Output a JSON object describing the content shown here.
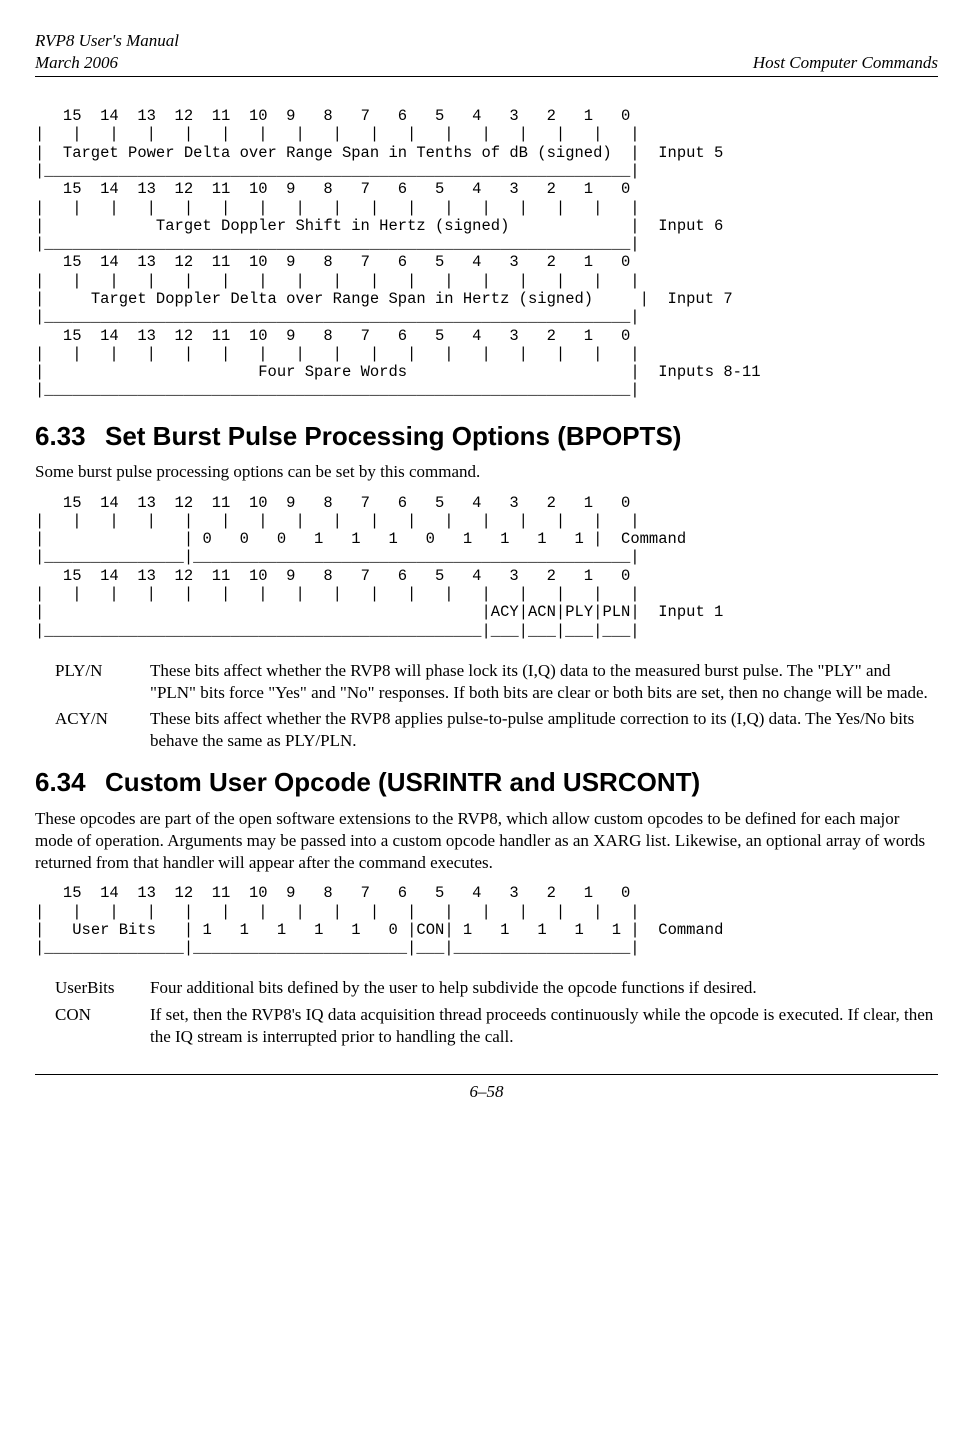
{
  "header": {
    "title": "RVP8 User's Manual",
    "date": "March 2006",
    "section": "Host Computer Commands"
  },
  "block1": {
    "bits": "  15  14  13  12  11  10  9   8   7   6   5   4   3   2   1   0",
    "f1": {
      "desc": "Target Power Delta over Range Span in Tenths of dB (signed)",
      "label": "Input 5"
    },
    "f2": {
      "desc": "Target Doppler Shift in Hertz (signed)",
      "label": "Input 6"
    },
    "f3": {
      "desc": "Target Doppler Delta over Range Span in Hertz (signed)",
      "label": "Input 7"
    },
    "f4": {
      "desc": "Four Spare Words",
      "label": "Inputs 8-11"
    }
  },
  "sec633": {
    "num": "6.33",
    "title": "Set Burst Pulse Processing Options (BPOPTS)",
    "intro": "Some burst pulse processing options can be set by this command.",
    "cmd": {
      "pattern": "0   0   0   1   1   1   0   1   1   1   1",
      "label": "Command"
    },
    "inp1": {
      "b3": "ACY",
      "b2": "ACN",
      "b1": "PLY",
      "b0": "PLN",
      "label": "Input 1"
    },
    "defs": [
      {
        "term": "PLY/N",
        "desc": "These bits affect whether the RVP8 will phase lock its (I,Q) data to the measured burst pulse.  The \"PLY\" and \"PLN\" bits force \"Yes\" and \"No\" responses.  If both bits are clear or both bits are set, then no change will be made."
      },
      {
        "term": "ACY/N",
        "desc": "These bits affect whether the RVP8 applies pulse-to-pulse amplitude correction to its (I,Q) data.  The Yes/No bits behave the same as PLY/PLN."
      }
    ]
  },
  "sec634": {
    "num": "6.34",
    "title": "Custom User Opcode (USRINTR and USRCONT)",
    "intro": "These opcodes are part of the open software extensions to the RVP8, which allow custom opcodes to be defined for each major mode of operation.  Arguments may be passed into a custom opcode handler as an XARG list.  Likewise, an optional array of words returned from that handler will appear after the command executes.",
    "cmd": {
      "userbits": "User Bits",
      "pattern1": "1   1   1   1   1   0",
      "con": "CON",
      "pattern2": "1   1   1   1   1",
      "label": "Command"
    },
    "defs": [
      {
        "term": "UserBits",
        "desc": "Four additional bits defined by the user to help subdivide the opcode functions if desired."
      },
      {
        "term": "CON",
        "desc": "If set, then the RVP8's IQ data acquisition thread proceeds continuously while the opcode is executed.  If clear, then the IQ stream is interrupted prior to handling the call."
      }
    ]
  },
  "footer": {
    "page": "6–58"
  }
}
